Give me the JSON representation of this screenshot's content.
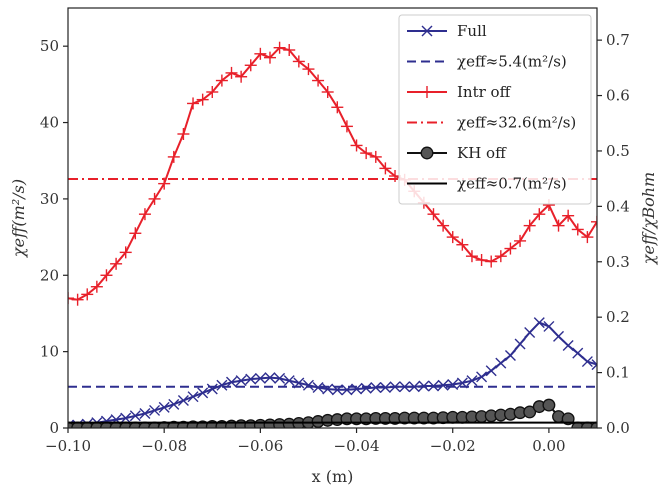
{
  "chart_data": {
    "type": "line",
    "xlabel": "x (m)",
    "ylabel_left": "χeff(m²/s)",
    "ylabel_right": "χeff/χBohm",
    "xlim": [
      -0.1,
      0.01
    ],
    "ylim_left": [
      0,
      55
    ],
    "ylim_right": [
      0,
      0.758
    ],
    "x_ticks": [
      -0.1,
      -0.08,
      -0.06,
      -0.04,
      -0.02,
      0.0
    ],
    "x_tick_labels": [
      "−0.10",
      "−0.08",
      "−0.06",
      "−0.04",
      "−0.02",
      "0.00"
    ],
    "y_left_ticks": [
      0,
      10,
      20,
      30,
      40,
      50
    ],
    "y_left_tick_labels": [
      "0",
      "10",
      "20",
      "30",
      "40",
      "50"
    ],
    "y_right_ticks": [
      0.0,
      0.1,
      0.2,
      0.3,
      0.4,
      0.5,
      0.6,
      0.7
    ],
    "y_right_tick_labels": [
      "0.0",
      "0.1",
      "0.2",
      "0.3",
      "0.4",
      "0.5",
      "0.6",
      "0.7"
    ],
    "grid": false,
    "legend_position": "top-right",
    "series": [
      {
        "name": "Full",
        "kind": "line",
        "marker": "x",
        "color": "#2e2e8f",
        "x": [
          -0.1,
          -0.098,
          -0.096,
          -0.094,
          -0.092,
          -0.09,
          -0.088,
          -0.086,
          -0.084,
          -0.082,
          -0.08,
          -0.078,
          -0.076,
          -0.074,
          -0.072,
          -0.07,
          -0.068,
          -0.066,
          -0.064,
          -0.062,
          -0.06,
          -0.058,
          -0.056,
          -0.054,
          -0.052,
          -0.05,
          -0.048,
          -0.046,
          -0.044,
          -0.042,
          -0.04,
          -0.038,
          -0.036,
          -0.034,
          -0.032,
          -0.03,
          -0.028,
          -0.026,
          -0.024,
          -0.022,
          -0.02,
          -0.018,
          -0.016,
          -0.014,
          -0.012,
          -0.01,
          -0.008,
          -0.006,
          -0.004,
          -0.002,
          0.0,
          0.002,
          0.004,
          0.006,
          0.008,
          0.01
        ],
        "values": [
          0.3,
          0.4,
          0.5,
          0.7,
          0.9,
          1.1,
          1.3,
          1.6,
          1.9,
          2.3,
          2.7,
          3.1,
          3.6,
          4.1,
          4.6,
          5.1,
          5.6,
          6.0,
          6.2,
          6.4,
          6.5,
          6.6,
          6.5,
          6.2,
          5.9,
          5.6,
          5.3,
          5.1,
          5.0,
          5.0,
          5.1,
          5.2,
          5.3,
          5.3,
          5.4,
          5.4,
          5.4,
          5.5,
          5.5,
          5.6,
          5.7,
          5.9,
          6.2,
          6.7,
          7.5,
          8.5,
          9.5,
          11.0,
          12.5,
          13.8,
          13.3,
          12.0,
          10.8,
          9.8,
          8.7,
          8.3
        ]
      },
      {
        "name": "χeff≈5.4(m²/s)",
        "kind": "hline",
        "dash": "9,5",
        "color": "#2e2e8f",
        "value": 5.4
      },
      {
        "name": "Intr off",
        "kind": "line",
        "marker": "+",
        "color": "#e8202a",
        "x": [
          -0.1,
          -0.098,
          -0.096,
          -0.094,
          -0.092,
          -0.09,
          -0.088,
          -0.086,
          -0.084,
          -0.082,
          -0.08,
          -0.078,
          -0.076,
          -0.074,
          -0.072,
          -0.07,
          -0.068,
          -0.066,
          -0.064,
          -0.062,
          -0.06,
          -0.058,
          -0.056,
          -0.054,
          -0.052,
          -0.05,
          -0.048,
          -0.046,
          -0.044,
          -0.042,
          -0.04,
          -0.038,
          -0.036,
          -0.034,
          -0.032,
          -0.03,
          -0.028,
          -0.026,
          -0.024,
          -0.022,
          -0.02,
          -0.018,
          -0.016,
          -0.014,
          -0.012,
          -0.01,
          -0.008,
          -0.006,
          -0.004,
          -0.002,
          0.0,
          0.002,
          0.004,
          0.006,
          0.008,
          0.01
        ],
        "values": [
          17.0,
          16.8,
          17.5,
          18.5,
          20.0,
          21.5,
          23.0,
          25.5,
          28.0,
          30.0,
          32.0,
          35.5,
          38.5,
          42.5,
          43.0,
          44.0,
          45.5,
          46.5,
          46.0,
          47.5,
          49.0,
          48.5,
          49.8,
          49.5,
          48.0,
          47.0,
          45.5,
          44.0,
          42.0,
          39.5,
          37.0,
          36.0,
          35.5,
          34.0,
          33.0,
          32.5,
          31.0,
          29.5,
          28.0,
          26.5,
          25.0,
          24.0,
          22.5,
          22.0,
          21.8,
          22.5,
          23.5,
          24.5,
          26.5,
          28.0,
          29.2,
          26.5,
          27.8,
          26.0,
          25.0,
          27.0
        ]
      },
      {
        "name": "χeff≈32.6(m²/s)",
        "kind": "hline",
        "dash": "10,4,2,4",
        "color": "#e8202a",
        "value": 32.6
      },
      {
        "name": "KH off",
        "kind": "line",
        "marker": "o",
        "color": "#111111",
        "marker_fill": "#555555",
        "x": [
          -0.1,
          -0.098,
          -0.096,
          -0.094,
          -0.092,
          -0.09,
          -0.088,
          -0.086,
          -0.084,
          -0.082,
          -0.08,
          -0.078,
          -0.076,
          -0.074,
          -0.072,
          -0.07,
          -0.068,
          -0.066,
          -0.064,
          -0.062,
          -0.06,
          -0.058,
          -0.056,
          -0.054,
          -0.052,
          -0.05,
          -0.048,
          -0.046,
          -0.044,
          -0.042,
          -0.04,
          -0.038,
          -0.036,
          -0.034,
          -0.032,
          -0.03,
          -0.028,
          -0.026,
          -0.024,
          -0.022,
          -0.02,
          -0.018,
          -0.016,
          -0.014,
          -0.012,
          -0.01,
          -0.008,
          -0.006,
          -0.004,
          -0.002,
          0.0,
          0.002,
          0.004,
          0.006,
          0.008,
          0.01
        ],
        "values": [
          0.0,
          0.0,
          0.0,
          0.0,
          0.0,
          0.0,
          0.0,
          0.0,
          0.0,
          0.0,
          0.05,
          0.1,
          0.1,
          0.15,
          0.15,
          0.2,
          0.2,
          0.25,
          0.3,
          0.3,
          0.35,
          0.4,
          0.45,
          0.5,
          0.6,
          0.7,
          0.85,
          1.0,
          1.1,
          1.2,
          1.2,
          1.2,
          1.25,
          1.25,
          1.25,
          1.3,
          1.3,
          1.3,
          1.3,
          1.35,
          1.4,
          1.4,
          1.45,
          1.5,
          1.6,
          1.7,
          1.8,
          2.0,
          2.1,
          2.8,
          3.0,
          1.5,
          1.2,
          0.0,
          0.0,
          0.0
        ]
      },
      {
        "name": "χeff≈0.7(m²/s)",
        "kind": "hline",
        "dash": "",
        "color": "#000000",
        "value": 0.7
      }
    ]
  },
  "legend": [
    {
      "label": "Full",
      "sample": "line-x",
      "color": "#2e2e8f"
    },
    {
      "label": "χeff≈5.4(m²/s)",
      "sample": "dash",
      "color": "#2e2e8f"
    },
    {
      "label": "Intr off",
      "sample": "line-plus",
      "color": "#e8202a"
    },
    {
      "label": "χeff≈32.6(m²/s)",
      "sample": "dashdot",
      "color": "#e8202a"
    },
    {
      "label": "KH off",
      "sample": "line-circle",
      "color": "#111111"
    },
    {
      "label": "χeff≈0.7(m²/s)",
      "sample": "solid",
      "color": "#000000"
    }
  ]
}
